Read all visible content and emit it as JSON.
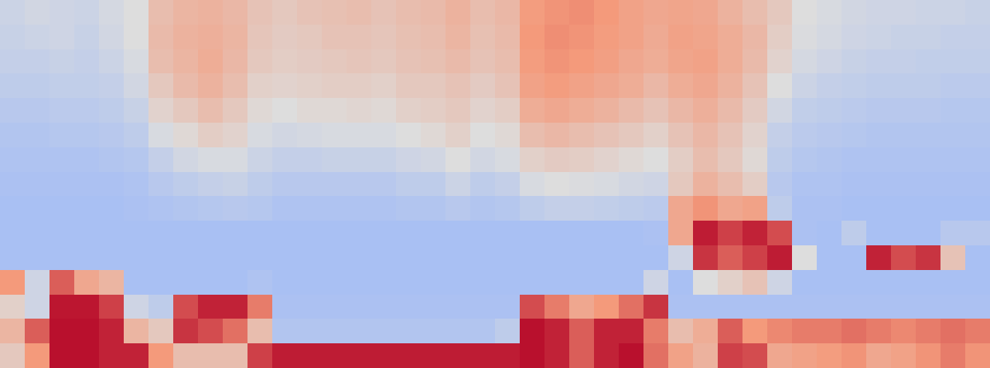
{
  "chart_data": {
    "type": "heatmap",
    "color": "coolwarm",
    "tick_labels": false,
    "zlim": [
      0,
      100
    ],
    "z": [
      [
        44,
        46,
        45,
        44,
        47,
        50,
        62,
        65,
        66,
        64,
        60,
        58,
        60,
        61,
        62,
        60,
        62,
        63,
        66,
        62,
        64,
        74,
        76,
        77,
        75,
        72,
        70,
        71,
        70,
        66,
        62,
        58,
        50,
        48,
        46,
        45,
        45,
        44,
        44,
        43
      ],
      [
        43,
        44,
        45,
        43,
        46,
        50,
        63,
        66,
        67,
        65,
        59,
        57,
        58,
        60,
        60,
        59,
        61,
        62,
        65,
        61,
        63,
        75,
        77,
        76,
        74,
        72,
        69,
        72,
        71,
        68,
        64,
        56,
        49,
        47,
        45,
        44,
        43,
        43,
        42,
        42
      ],
      [
        42,
        42,
        43,
        42,
        44,
        48,
        62,
        65,
        68,
        64,
        58,
        56,
        57,
        58,
        59,
        58,
        60,
        61,
        63,
        60,
        62,
        74,
        76,
        75,
        73,
        70,
        68,
        71,
        72,
        68,
        63,
        54,
        47,
        45,
        43,
        42,
        42,
        41,
        41,
        41
      ],
      [
        40,
        40,
        41,
        41,
        42,
        46,
        58,
        63,
        66,
        62,
        55,
        54,
        55,
        56,
        56,
        55,
        58,
        58,
        60,
        57,
        60,
        72,
        74,
        72,
        70,
        68,
        64,
        68,
        70,
        66,
        60,
        50,
        44,
        42,
        41,
        40,
        40,
        40,
        39,
        39
      ],
      [
        38,
        38,
        39,
        39,
        40,
        43,
        54,
        58,
        62,
        58,
        52,
        50,
        52,
        52,
        53,
        52,
        55,
        56,
        58,
        54,
        56,
        68,
        70,
        68,
        66,
        63,
        60,
        64,
        67,
        63,
        57,
        46,
        41,
        40,
        39,
        38,
        38,
        38,
        37,
        37
      ],
      [
        36,
        36,
        37,
        37,
        38,
        40,
        48,
        52,
        56,
        54,
        48,
        46,
        47,
        48,
        48,
        48,
        50,
        52,
        55,
        50,
        52,
        62,
        64,
        62,
        60,
        58,
        55,
        60,
        64,
        60,
        54,
        42,
        39,
        38,
        37,
        36,
        36,
        36,
        36,
        36
      ],
      [
        35,
        35,
        35,
        35,
        36,
        37,
        42,
        46,
        48,
        48,
        44,
        42,
        42,
        43,
        43,
        43,
        45,
        46,
        50,
        46,
        48,
        55,
        57,
        56,
        54,
        52,
        50,
        56,
        62,
        58,
        52,
        40,
        37,
        36,
        35,
        35,
        35,
        35,
        35,
        35
      ],
      [
        34,
        34,
        34,
        34,
        34,
        35,
        38,
        40,
        42,
        43,
        40,
        38,
        38,
        38,
        38,
        38,
        40,
        40,
        44,
        40,
        42,
        48,
        50,
        49,
        48,
        46,
        45,
        58,
        66,
        62,
        56,
        38,
        35,
        35,
        34,
        34,
        34,
        34,
        34,
        34
      ],
      [
        33,
        33,
        33,
        33,
        33,
        34,
        35,
        36,
        37,
        38,
        37,
        35,
        35,
        35,
        35,
        35,
        36,
        36,
        38,
        36,
        37,
        40,
        42,
        42,
        41,
        40,
        39,
        70,
        76,
        70,
        72,
        40,
        34,
        34,
        33,
        33,
        33,
        33,
        33,
        33
      ],
      [
        33,
        33,
        33,
        33,
        33,
        33,
        33,
        33,
        33,
        33,
        33,
        33,
        33,
        33,
        33,
        33,
        33,
        33,
        33,
        33,
        33,
        33,
        33,
        33,
        33,
        33,
        34,
        70,
        96,
        90,
        95,
        88,
        34,
        33,
        40,
        33,
        33,
        33,
        38,
        38
      ],
      [
        33,
        33,
        33,
        33,
        33,
        33,
        33,
        33,
        33,
        33,
        33,
        33,
        33,
        33,
        33,
        33,
        33,
        33,
        33,
        33,
        33,
        33,
        33,
        33,
        33,
        33,
        33,
        45,
        92,
        85,
        90,
        96,
        50,
        33,
        33,
        95,
        88,
        92,
        60,
        33
      ],
      [
        75,
        45,
        85,
        70,
        65,
        33,
        33,
        33,
        33,
        33,
        35,
        33,
        33,
        33,
        33,
        33,
        33,
        33,
        33,
        33,
        33,
        33,
        33,
        33,
        33,
        33,
        45,
        33,
        50,
        55,
        60,
        45,
        33,
        33,
        33,
        33,
        33,
        33,
        33,
        33
      ],
      [
        55,
        45,
        97,
        97,
        90,
        45,
        40,
        88,
        95,
        95,
        80,
        34,
        34,
        34,
        34,
        34,
        34,
        34,
        34,
        34,
        34,
        88,
        80,
        70,
        75,
        82,
        92,
        34,
        34,
        34,
        34,
        34,
        34,
        34,
        34,
        34,
        34,
        34,
        34,
        34
      ],
      [
        65,
        85,
        98,
        98,
        95,
        65,
        58,
        92,
        88,
        82,
        62,
        36,
        36,
        36,
        36,
        36,
        36,
        36,
        36,
        36,
        40,
        98,
        95,
        85,
        95,
        95,
        80,
        62,
        68,
        85,
        75,
        78,
        80,
        80,
        82,
        80,
        78,
        80,
        82,
        80
      ],
      [
        58,
        75,
        98,
        98,
        95,
        95,
        75,
        62,
        62,
        62,
        90,
        96,
        96,
        96,
        96,
        96,
        96,
        96,
        96,
        96,
        96,
        98,
        95,
        85,
        95,
        98,
        82,
        72,
        66,
        90,
        88,
        70,
        72,
        74,
        76,
        70,
        72,
        76,
        80,
        76
      ]
    ]
  }
}
